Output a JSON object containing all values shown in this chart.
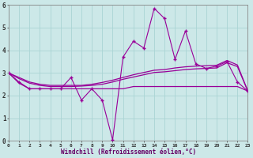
{
  "xlabel": "Windchill (Refroidissement éolien,°C)",
  "xlim": [
    0,
    23
  ],
  "ylim": [
    0,
    6
  ],
  "xticks": [
    0,
    1,
    2,
    3,
    4,
    5,
    6,
    7,
    8,
    9,
    10,
    11,
    12,
    13,
    14,
    15,
    16,
    17,
    18,
    19,
    20,
    21,
    22,
    23
  ],
  "yticks": [
    0,
    1,
    2,
    3,
    4,
    5,
    6
  ],
  "bg_color": "#cce8e8",
  "line_color": "#990099",
  "grid_color": "#aad4d4",
  "series": [
    {
      "y": [
        3.0,
        2.6,
        2.3,
        2.3,
        2.3,
        2.3,
        2.8,
        1.8,
        2.3,
        1.8,
        0.05,
        3.7,
        4.4,
        4.1,
        5.85,
        5.4,
        3.6,
        4.85,
        3.4,
        3.2,
        3.3,
        3.5,
        2.6,
        2.2
      ],
      "marker": true
    },
    {
      "y": [
        3.0,
        2.55,
        2.3,
        2.3,
        2.3,
        2.3,
        2.3,
        2.3,
        2.3,
        2.3,
        2.3,
        2.3,
        2.4,
        2.4,
        2.4,
        2.4,
        2.4,
        2.4,
        2.4,
        2.4,
        2.4,
        2.4,
        2.4,
        2.2
      ],
      "marker": false
    },
    {
      "y": [
        3.0,
        2.75,
        2.55,
        2.45,
        2.4,
        2.4,
        2.4,
        2.42,
        2.45,
        2.5,
        2.6,
        2.72,
        2.82,
        2.92,
        3.02,
        3.05,
        3.1,
        3.15,
        3.18,
        3.2,
        3.22,
        3.45,
        3.28,
        2.2
      ],
      "marker": false
    },
    {
      "y": [
        3.0,
        2.8,
        2.6,
        2.5,
        2.45,
        2.45,
        2.45,
        2.45,
        2.5,
        2.58,
        2.68,
        2.8,
        2.92,
        3.02,
        3.12,
        3.15,
        3.22,
        3.27,
        3.3,
        3.32,
        3.34,
        3.55,
        3.35,
        2.2
      ],
      "marker": false
    }
  ]
}
